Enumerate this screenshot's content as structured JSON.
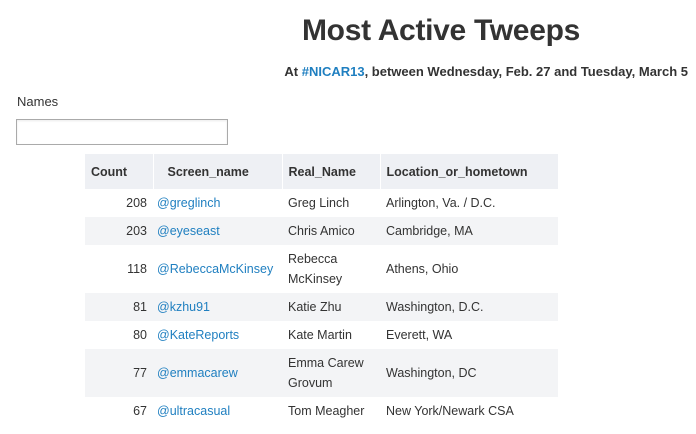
{
  "page": {
    "title": "Most Active Tweeps",
    "subtitle_prefix": "At ",
    "hashtag": "#NICAR13",
    "subtitle_suffix": ", between Wednesday, Feb. 27 and Tuesday, March 5"
  },
  "filter": {
    "label": "Names",
    "value": "",
    "placeholder": ""
  },
  "table": {
    "columns": [
      "Count",
      "Screen_name",
      "Real_Name",
      "Location_or_hometown"
    ],
    "rows": [
      {
        "count": "208",
        "screen_name": "@greglinch",
        "real_name": "Greg Linch",
        "location": "Arlington, Va. / D.C."
      },
      {
        "count": "203",
        "screen_name": "@eyeseast",
        "real_name": "Chris Amico",
        "location": "Cambridge, MA"
      },
      {
        "count": "118",
        "screen_name": "@RebeccaMcKinsey",
        "real_name": "Rebecca McKinsey",
        "location": "Athens, Ohio"
      },
      {
        "count": "81",
        "screen_name": "@kzhu91",
        "real_name": "Katie Zhu",
        "location": "Washington, D.C."
      },
      {
        "count": "80",
        "screen_name": "@KateReports",
        "real_name": "Kate Martin",
        "location": "Everett, WA"
      },
      {
        "count": "77",
        "screen_name": "@emmacarew",
        "real_name": "Emma Carew Grovum",
        "location": "Washington, DC"
      },
      {
        "count": "67",
        "screen_name": "@ultracasual",
        "real_name": "Tom Meagher",
        "location": "New York/Newark CSA"
      }
    ]
  },
  "colors": {
    "link": "#1f7fc0",
    "header_bg": "#eef0f4",
    "stripe_bg": "#f3f4f6"
  }
}
